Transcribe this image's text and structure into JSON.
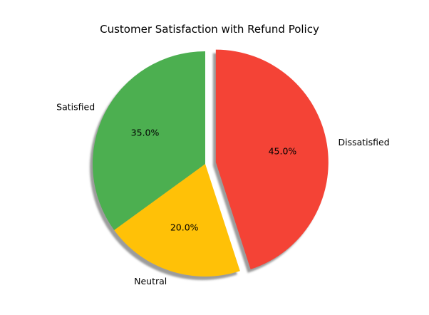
{
  "chart_data": {
    "type": "pie",
    "title": "Customer Satisfaction with Refund Policy",
    "labels": [
      "Dissatisfied",
      "Neutral",
      "Satisfied"
    ],
    "values": [
      45.0,
      20.0,
      35.0
    ],
    "percent_labels": [
      "45.0%",
      "20.0%",
      "35.0%"
    ],
    "colors": [
      "#f44336",
      "#ffc107",
      "#4caf50"
    ],
    "exploded": [
      true,
      false,
      false
    ],
    "shadow": true,
    "direction": "clockwise",
    "start": "top",
    "legend": "none"
  }
}
